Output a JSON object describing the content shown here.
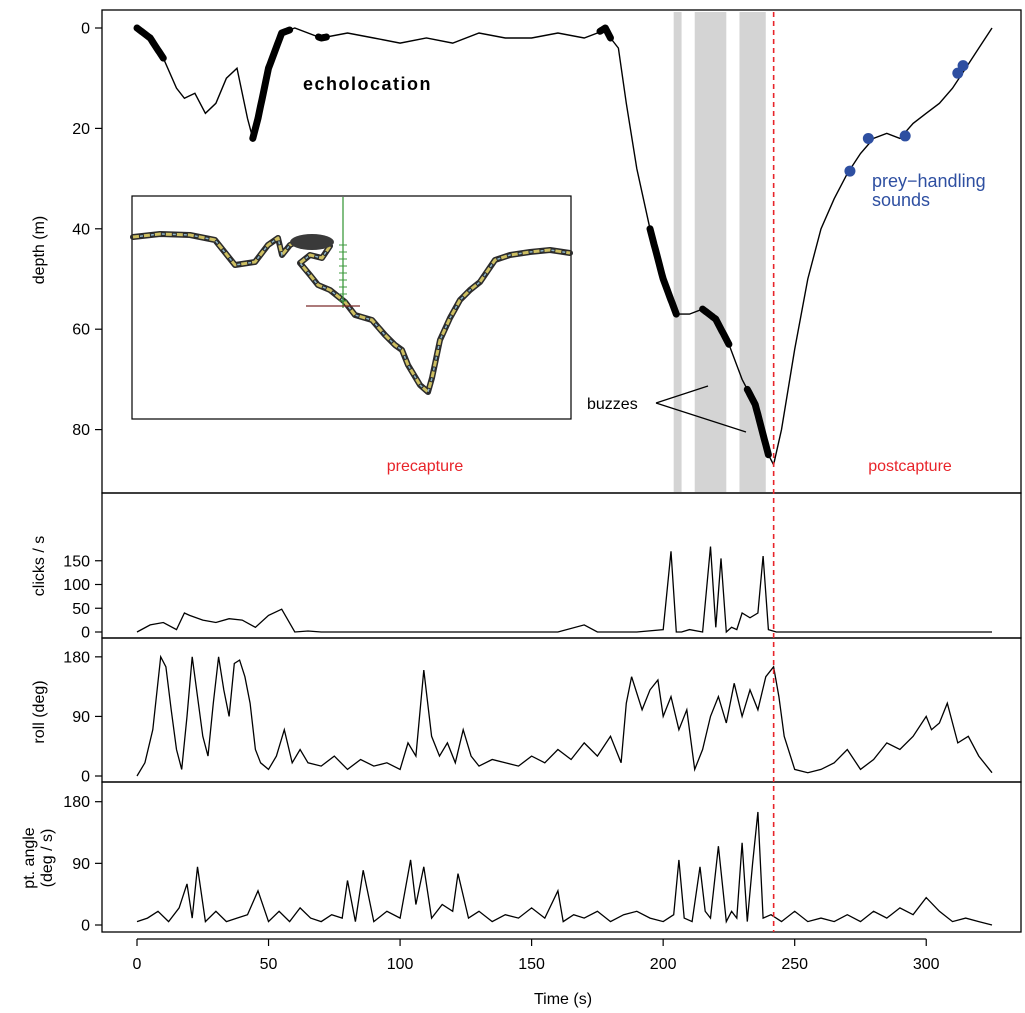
{
  "chart_data": [
    {
      "type": "line",
      "panel": "depth",
      "ylabel": "depth (m)",
      "xlabel": "",
      "y_inverted": true,
      "xlim": [
        -5,
        330
      ],
      "ylim": [
        -5,
        93
      ],
      "yticks": [
        0,
        20,
        40,
        60,
        80
      ],
      "dive_profile": {
        "x": [
          0,
          5,
          10,
          15,
          18,
          22,
          26,
          30,
          34,
          38,
          42,
          44,
          46,
          50,
          55,
          60,
          70,
          80,
          90,
          100,
          110,
          120,
          130,
          140,
          150,
          160,
          170,
          175,
          178,
          180,
          183,
          186,
          190,
          195,
          200,
          205,
          210,
          215,
          220,
          225,
          230,
          235,
          240,
          242,
          245,
          250,
          255,
          260,
          265,
          270,
          275,
          280,
          285,
          290,
          295,
          300,
          305,
          310,
          315,
          320,
          325
        ],
        "y": [
          0,
          2,
          6,
          12,
          14,
          13,
          17,
          15,
          10,
          8,
          18,
          22,
          18,
          8,
          1,
          0,
          2,
          1,
          2,
          3,
          2,
          3,
          1,
          2,
          2,
          1,
          2,
          1,
          0,
          2,
          4,
          15,
          28,
          40,
          50,
          57,
          57,
          56,
          58,
          63,
          70,
          75,
          85,
          87,
          80,
          64,
          50,
          40,
          34,
          29,
          25,
          22,
          21,
          22,
          19,
          17,
          15,
          12,
          8,
          4,
          0
        ]
      },
      "echolocation_segments": [
        [
          0,
          10
        ],
        [
          44,
          58
        ],
        [
          69,
          72
        ],
        [
          176,
          180
        ],
        [
          195,
          205
        ],
        [
          215,
          225
        ],
        [
          232,
          240
        ]
      ],
      "buzz_intervals": [
        [
          204,
          207
        ],
        [
          212,
          224
        ],
        [
          229,
          239
        ]
      ],
      "prey_handling_sounds": {
        "x": [
          271,
          278,
          292,
          312,
          314
        ],
        "y": [
          28.5,
          22,
          21.5,
          9,
          7.5
        ]
      },
      "capture_time": 242,
      "annotations": {
        "echolocation": "echolocation",
        "buzzes": "buzzes",
        "prey_handling_line1": "prey−handling",
        "prey_handling_line2": "sounds",
        "precapture": "precapture",
        "postcapture": "postcapture"
      },
      "colors": {
        "line": "#000000",
        "buzz": "#d4d4d4",
        "capture": "#e8242a",
        "prey_handling": "#2e4fa1",
        "phase_label": "#e8242a"
      }
    },
    {
      "type": "line",
      "panel": "clicks",
      "ylabel": "clicks / s",
      "ylim": [
        -5,
        190
      ],
      "yticks": [
        0,
        50,
        100,
        150
      ],
      "x": [
        0,
        5,
        10,
        15,
        18,
        20,
        25,
        30,
        35,
        40,
        45,
        50,
        55,
        60,
        65,
        70,
        80,
        100,
        120,
        140,
        160,
        170,
        175,
        180,
        190,
        200,
        203,
        205,
        207,
        210,
        215,
        218,
        220,
        222,
        224,
        226,
        228,
        230,
        233,
        236,
        238,
        240,
        243,
        250,
        270,
        300,
        325
      ],
      "y": [
        0,
        15,
        20,
        5,
        40,
        35,
        25,
        20,
        28,
        25,
        10,
        35,
        48,
        0,
        2,
        0,
        0,
        0,
        0,
        0,
        0,
        15,
        0,
        0,
        0,
        5,
        170,
        0,
        0,
        5,
        0,
        180,
        10,
        155,
        0,
        10,
        5,
        40,
        30,
        40,
        160,
        5,
        0,
        0,
        0,
        0,
        0
      ]
    },
    {
      "type": "line",
      "panel": "roll",
      "ylabel": "roll (deg)",
      "ylim": [
        -5,
        190
      ],
      "yticks": [
        0,
        90,
        180
      ],
      "x": [
        0,
        3,
        6,
        9,
        11,
        13,
        15,
        17,
        19,
        21,
        23,
        25,
        27,
        29,
        31,
        33,
        35,
        37,
        39,
        41,
        43,
        45,
        47,
        50,
        53,
        56,
        59,
        62,
        65,
        70,
        75,
        80,
        85,
        90,
        95,
        100,
        103,
        106,
        109,
        112,
        115,
        118,
        121,
        124,
        127,
        130,
        135,
        140,
        145,
        150,
        155,
        160,
        165,
        170,
        175,
        180,
        184,
        186,
        188,
        192,
        195,
        198,
        200,
        203,
        206,
        209,
        212,
        215,
        218,
        221,
        224,
        227,
        230,
        233,
        236,
        239,
        242,
        244,
        246,
        250,
        255,
        260,
        265,
        270,
        275,
        280,
        285,
        290,
        295,
        300,
        302,
        305,
        308,
        312,
        316,
        320,
        325
      ],
      "y": [
        0,
        20,
        70,
        180,
        165,
        100,
        40,
        10,
        90,
        180,
        120,
        60,
        30,
        110,
        180,
        130,
        90,
        170,
        175,
        150,
        110,
        40,
        20,
        10,
        30,
        70,
        20,
        40,
        20,
        15,
        30,
        10,
        25,
        15,
        20,
        10,
        50,
        30,
        160,
        60,
        30,
        50,
        20,
        70,
        30,
        15,
        25,
        20,
        15,
        30,
        20,
        40,
        25,
        50,
        30,
        60,
        20,
        110,
        150,
        100,
        130,
        145,
        90,
        120,
        70,
        100,
        10,
        40,
        90,
        120,
        80,
        140,
        90,
        130,
        100,
        150,
        165,
        120,
        60,
        10,
        5,
        10,
        20,
        40,
        10,
        25,
        50,
        40,
        60,
        90,
        70,
        80,
        110,
        50,
        60,
        30,
        5
      ]
    },
    {
      "type": "line",
      "panel": "angular_rate",
      "ylabel_line1": "pt. angle",
      "ylabel_line2": "(deg / s)",
      "xlabel": "Time (s)",
      "ylim": [
        -5,
        190
      ],
      "yticks": [
        0,
        90,
        180
      ],
      "xticks": [
        0,
        50,
        100,
        150,
        200,
        250,
        300
      ],
      "x": [
        0,
        4,
        8,
        12,
        16,
        19,
        21,
        23,
        26,
        30,
        34,
        38,
        42,
        46,
        50,
        54,
        58,
        62,
        66,
        70,
        74,
        78,
        80,
        83,
        86,
        90,
        95,
        100,
        104,
        106,
        109,
        112,
        116,
        120,
        122,
        126,
        130,
        135,
        140,
        145,
        150,
        155,
        160,
        162,
        166,
        170,
        175,
        180,
        185,
        190,
        195,
        200,
        204,
        206,
        208,
        211,
        214,
        216,
        218,
        221,
        224,
        226,
        228,
        230,
        232,
        234,
        236,
        238,
        241,
        245,
        250,
        255,
        260,
        265,
        270,
        275,
        280,
        285,
        290,
        295,
        300,
        305,
        310,
        315,
        320,
        325
      ],
      "y": [
        5,
        10,
        20,
        5,
        25,
        60,
        10,
        85,
        5,
        20,
        5,
        10,
        15,
        50,
        5,
        20,
        5,
        25,
        10,
        5,
        15,
        10,
        65,
        5,
        80,
        5,
        20,
        10,
        95,
        30,
        85,
        10,
        30,
        20,
        75,
        10,
        20,
        5,
        15,
        10,
        25,
        10,
        50,
        5,
        15,
        10,
        20,
        5,
        15,
        20,
        10,
        5,
        15,
        95,
        10,
        5,
        85,
        20,
        10,
        115,
        5,
        20,
        10,
        120,
        5,
        90,
        165,
        10,
        15,
        5,
        20,
        5,
        10,
        5,
        15,
        5,
        20,
        10,
        25,
        15,
        40,
        20,
        5,
        10,
        5,
        0
      ]
    }
  ],
  "inset": {
    "caption": ""
  }
}
